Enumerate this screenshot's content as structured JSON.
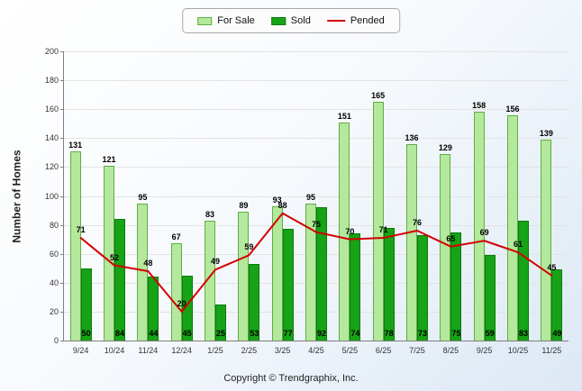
{
  "legend": {
    "for_sale": "For Sale",
    "sold": "Sold",
    "pended": "Pended"
  },
  "page": {
    "copyright": "Copyright © Trendgraphix, Inc."
  },
  "chart_data": {
    "type": "bar",
    "subtype": "grouped-bars-with-line-overlay",
    "title": "",
    "xlabel": "",
    "ylabel": "Number of Homes",
    "ylim": [
      0,
      200
    ],
    "ytick_step": 20,
    "grid": true,
    "legend_position": "top-center",
    "categories": [
      "9/24",
      "10/24",
      "11/24",
      "12/24",
      "1/25",
      "2/25",
      "3/25",
      "4/25",
      "5/25",
      "6/25",
      "7/25",
      "8/25",
      "9/25",
      "10/25",
      "11/25"
    ],
    "series": [
      {
        "name": "For Sale",
        "type": "bar",
        "fill": "#b4e89c",
        "border": "#5fae46",
        "values": [
          131,
          121,
          95,
          67,
          83,
          89,
          93,
          95,
          151,
          165,
          136,
          129,
          158,
          156,
          139
        ]
      },
      {
        "name": "Sold",
        "type": "bar",
        "fill": "#17a317",
        "border": "#0b7a0b",
        "values": [
          50,
          84,
          44,
          45,
          25,
          53,
          77,
          92,
          74,
          78,
          73,
          75,
          59,
          83,
          49
        ]
      },
      {
        "name": "Pended",
        "type": "line",
        "color": "#d40000",
        "values": [
          71,
          52,
          48,
          20,
          49,
          59,
          88,
          75,
          70,
          71,
          76,
          65,
          69,
          61,
          45
        ]
      }
    ]
  }
}
